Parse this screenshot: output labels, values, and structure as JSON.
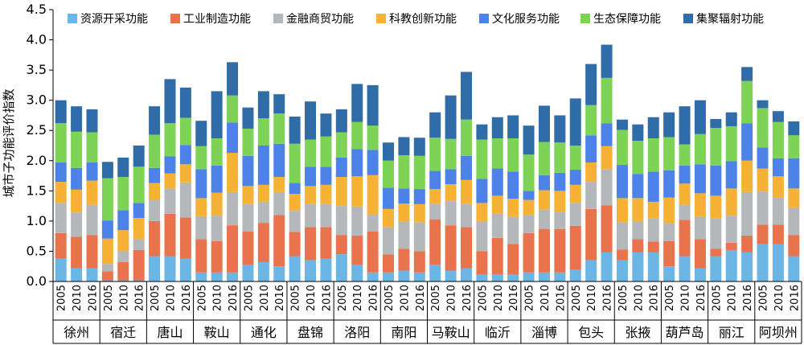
{
  "chart_data": {
    "type": "bar",
    "stacked": true,
    "ylabel": "城市子功能评价指数",
    "ylim": [
      0,
      4.5
    ],
    "yticks": [
      "0.0",
      "0.5",
      "1.0",
      "1.5",
      "2.0",
      "2.5",
      "3.0",
      "3.5",
      "4.0",
      "4.5"
    ],
    "years": [
      "2005",
      "2010",
      "2016"
    ],
    "cities": [
      "徐州",
      "宿迁",
      "唐山",
      "鞍山",
      "通化",
      "盘锦",
      "洛阳",
      "南阳",
      "马鞍山",
      "临沂",
      "淄博",
      "包头",
      "张掖",
      "葫芦岛",
      "丽江",
      "阿坝州"
    ],
    "legend_position": "top",
    "series": [
      {
        "name": "资源开采功能",
        "color": "#6CB6E6",
        "values": [
          0.38,
          0.22,
          0.22,
          0.02,
          0.02,
          0.02,
          0.42,
          0.42,
          0.38,
          0.15,
          0.15,
          0.15,
          0.28,
          0.32,
          0.25,
          0.42,
          0.35,
          0.38,
          0.45,
          0.28,
          0.15,
          0.15,
          0.18,
          0.15,
          0.28,
          0.18,
          0.22,
          0.12,
          0.12,
          0.12,
          0.15,
          0.15,
          0.15,
          0.2,
          0.35,
          0.48,
          0.35,
          0.48,
          0.48,
          0.25,
          0.42,
          0.22,
          0.42,
          0.52,
          0.48,
          0.62,
          0.62,
          0.42
        ]
      },
      {
        "name": "工业制造功能",
        "color": "#E8734C",
        "values": [
          0.42,
          0.52,
          0.55,
          0.15,
          0.3,
          0.5,
          0.58,
          0.7,
          0.68,
          0.55,
          0.52,
          0.78,
          0.55,
          0.65,
          0.85,
          0.4,
          0.55,
          0.52,
          0.32,
          0.48,
          0.68,
          0.3,
          0.36,
          0.35,
          0.75,
          0.75,
          0.68,
          0.38,
          0.6,
          0.5,
          0.65,
          0.72,
          0.72,
          0.72,
          0.85,
          0.78,
          0.18,
          0.22,
          0.18,
          0.42,
          0.6,
          0.48,
          0.12,
          0.12,
          0.28,
          0.32,
          0.32,
          0.35
        ]
      },
      {
        "name": "金融商贸功能",
        "color": "#B5B8BA",
        "values": [
          0.5,
          0.4,
          0.5,
          0.12,
          0.18,
          0.18,
          0.35,
          0.42,
          0.58,
          0.38,
          0.42,
          0.55,
          0.45,
          0.35,
          0.38,
          0.35,
          0.38,
          0.38,
          0.48,
          0.48,
          0.28,
          0.45,
          0.45,
          0.48,
          0.25,
          0.4,
          0.38,
          0.5,
          0.4,
          0.45,
          0.3,
          0.32,
          0.28,
          0.38,
          0.45,
          0.6,
          0.45,
          0.3,
          0.38,
          0.3,
          0.25,
          0.38,
          0.5,
          0.45,
          0.72,
          0.55,
          0.45,
          0.45
        ]
      },
      {
        "name": "科教创新功能",
        "color": "#F5B234",
        "values": [
          0.35,
          0.38,
          0.4,
          0.42,
          0.35,
          0.35,
          0.28,
          0.25,
          0.3,
          0.3,
          0.38,
          0.65,
          0.3,
          0.28,
          0.25,
          0.28,
          0.3,
          0.32,
          0.48,
          0.5,
          0.65,
          0.3,
          0.3,
          0.3,
          0.25,
          0.28,
          0.4,
          0.3,
          0.3,
          0.3,
          0.25,
          0.32,
          0.35,
          0.3,
          0.32,
          0.38,
          0.4,
          0.38,
          0.28,
          0.42,
          0.35,
          0.38,
          0.38,
          0.45,
          0.52,
          0.38,
          0.35,
          0.32
        ]
      },
      {
        "name": "文化服务功能",
        "color": "#4D82E8",
        "values": [
          0.32,
          0.36,
          0.3,
          0.3,
          0.33,
          0.25,
          0.25,
          0.28,
          0.32,
          0.48,
          0.45,
          0.5,
          0.5,
          0.65,
          0.55,
          0.18,
          0.32,
          0.3,
          0.32,
          0.45,
          0.42,
          0.35,
          0.25,
          0.25,
          0.3,
          0.25,
          0.4,
          0.4,
          0.45,
          0.45,
          0.15,
          0.25,
          0.3,
          0.25,
          0.45,
          0.38,
          0.55,
          0.4,
          0.5,
          0.45,
          0.3,
          0.48,
          0.5,
          0.45,
          0.62,
          0.35,
          0.3,
          0.5
        ]
      },
      {
        "name": "生态保障功能",
        "color": "#7ED357",
        "values": [
          0.65,
          0.6,
          0.5,
          0.7,
          0.55,
          0.6,
          0.55,
          0.55,
          0.45,
          0.38,
          0.45,
          0.45,
          0.45,
          0.45,
          0.5,
          0.65,
          0.45,
          0.5,
          0.42,
          0.45,
          0.4,
          0.45,
          0.55,
          0.55,
          0.55,
          0.5,
          0.6,
          0.65,
          0.5,
          0.55,
          0.6,
          0.55,
          0.5,
          0.4,
          0.5,
          0.75,
          0.58,
          0.55,
          0.55,
          0.55,
          0.35,
          0.5,
          0.62,
          0.58,
          0.7,
          0.65,
          0.6,
          0.38
        ]
      },
      {
        "name": "集聚辐射功能",
        "color": "#2F6CA8",
        "values": [
          0.38,
          0.42,
          0.38,
          0.27,
          0.32,
          0.35,
          0.47,
          0.73,
          0.5,
          0.42,
          0.78,
          0.55,
          0.35,
          0.45,
          0.32,
          0.45,
          0.63,
          0.38,
          0.38,
          0.63,
          0.67,
          0.3,
          0.3,
          0.3,
          0.42,
          0.72,
          0.79,
          0.25,
          0.35,
          0.38,
          0.48,
          0.6,
          0.45,
          0.78,
          0.68,
          0.55,
          0.17,
          0.27,
          0.35,
          0.41,
          0.63,
          0.56,
          0.15,
          0.23,
          0.23,
          0.13,
          0.18,
          0.23
        ]
      }
    ]
  }
}
